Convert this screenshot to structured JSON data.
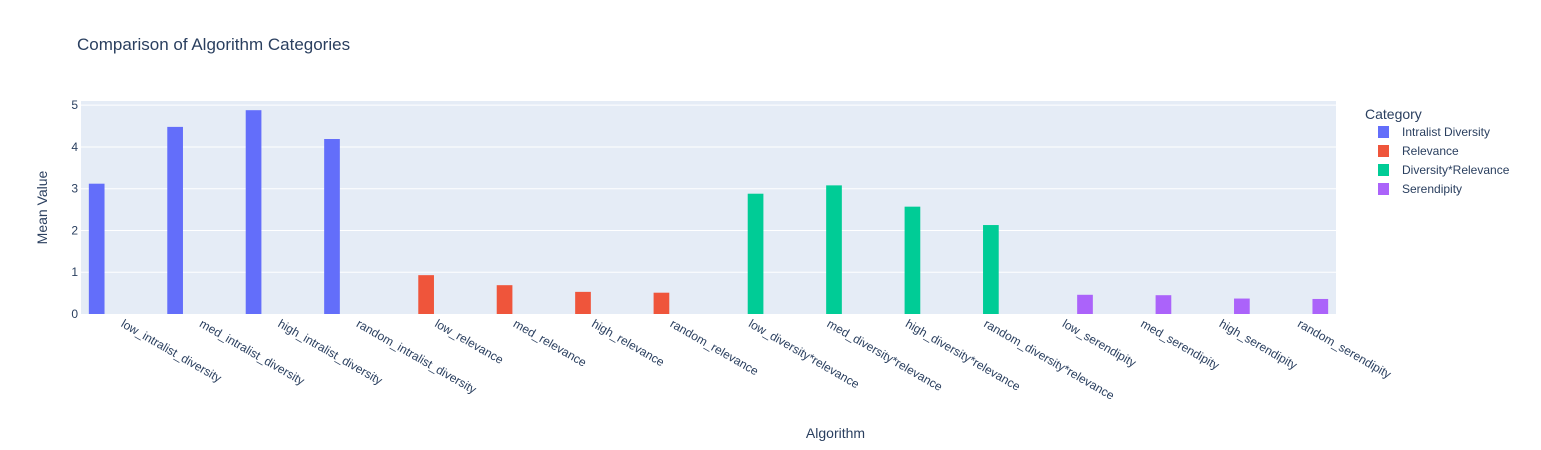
{
  "chart_data": {
    "type": "bar",
    "title": "Comparison of Algorithm Categories",
    "xlabel": "Algorithm",
    "ylabel": "Mean Value",
    "ylim": [
      0,
      5.1
    ],
    "yticks": [
      0,
      1,
      2,
      3,
      4,
      5
    ],
    "grid": true,
    "legend_title": "Category",
    "legend_position": "right",
    "categories": [
      "low_intralist_diversity",
      "med_intralist_diversity",
      "high_intralist_diversity",
      "random_intralist_diversity",
      "low_relevance",
      "med_relevance",
      "high_relevance",
      "random_relevance",
      "low_diversity*relevance",
      "med_diversity*relevance",
      "high_diversity*relevance",
      "random_diversity*relevance",
      "low_serendipity",
      "med_serendipity",
      "high_serendipity",
      "random_serendipity"
    ],
    "series": [
      {
        "name": "Intralist Diversity",
        "color": "#636efa",
        "values": [
          3.12,
          4.48,
          4.88,
          4.19,
          null,
          null,
          null,
          null,
          null,
          null,
          null,
          null,
          null,
          null,
          null,
          null
        ]
      },
      {
        "name": "Relevance",
        "color": "#ef553b",
        "values": [
          null,
          null,
          null,
          null,
          0.93,
          0.69,
          0.53,
          0.51,
          null,
          null,
          null,
          null,
          null,
          null,
          null,
          null
        ]
      },
      {
        "name": "Diversity*Relevance",
        "color": "#00cc96",
        "values": [
          null,
          null,
          null,
          null,
          null,
          null,
          null,
          null,
          2.88,
          3.08,
          2.57,
          2.13,
          null,
          null,
          null,
          null
        ]
      },
      {
        "name": "Serendipity",
        "color": "#ab63fa",
        "values": [
          null,
          null,
          null,
          null,
          null,
          null,
          null,
          null,
          null,
          null,
          null,
          null,
          0.46,
          0.45,
          0.37,
          0.36
        ]
      }
    ]
  },
  "colors": {
    "plot_background": "#e5ecf6",
    "gridline": "#ffffff",
    "text": "#2a3f5f"
  }
}
